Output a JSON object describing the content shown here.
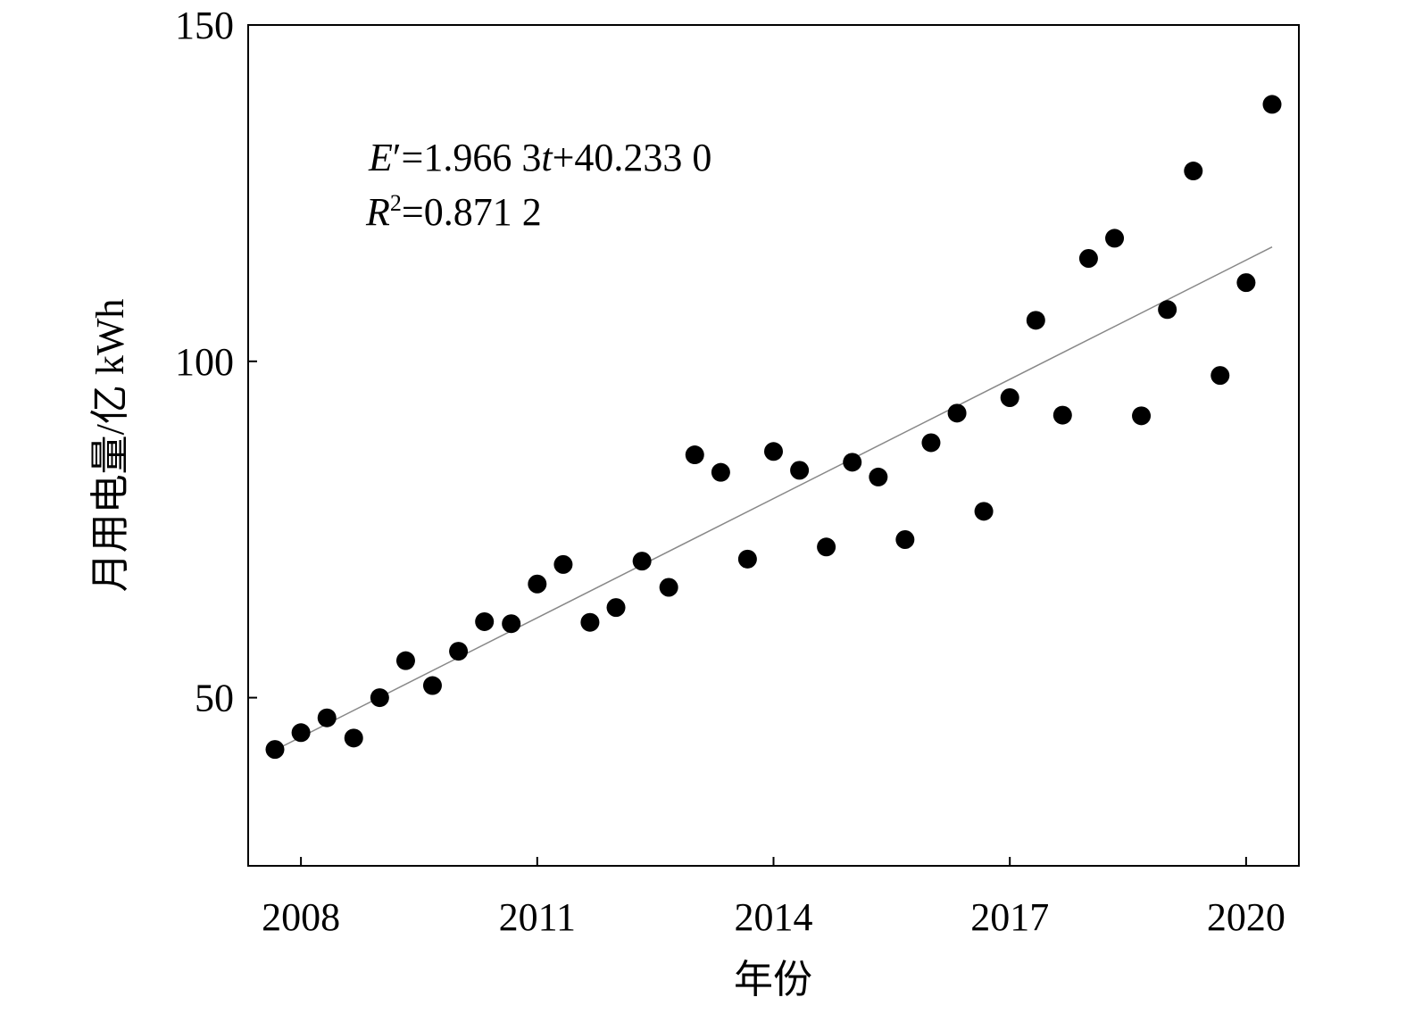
{
  "chart_data": {
    "type": "scatter",
    "xlabel": "年份",
    "ylabel": "月用电量/亿 kWh",
    "xlim": [
      2007.33,
      2020.67
    ],
    "ylim": [
      25,
      150
    ],
    "x_ticks": [
      2008,
      2011,
      2014,
      2017,
      2020
    ],
    "x_tick_labels": [
      "2008",
      "2011",
      "2014",
      "2017",
      "2020"
    ],
    "y_ticks": [
      50,
      100,
      150
    ],
    "y_tick_labels": [
      "50",
      "100",
      "150"
    ],
    "grid": false,
    "legend": "none",
    "colors": {
      "points": "#000000",
      "fit_line": "#888888",
      "axis": "#000000"
    },
    "fit_line": {
      "x": [
        2007.67,
        2020.33
      ],
      "y": [
        42.2,
        117.0
      ]
    },
    "annotations": {
      "equation_prefix": "E",
      "equation_prime": "′",
      "equation_mid": "=1.966 3",
      "equation_var": "t",
      "equation_suffix": "+40.233 0",
      "r2_prefix": "R",
      "r2_exp": "2",
      "r2_suffix": "=0.871 2"
    },
    "series": [
      {
        "x": [
          2007.67,
          2008.0,
          2008.33,
          2008.67,
          2009.0,
          2009.33,
          2009.67,
          2010.0,
          2010.33,
          2010.67,
          2011.0,
          2011.33,
          2011.67,
          2012.0,
          2012.33,
          2012.67,
          2013.0,
          2013.33,
          2013.67,
          2014.0,
          2014.33,
          2014.67,
          2015.0,
          2015.33,
          2015.67,
          2016.0,
          2016.33,
          2016.67,
          2017.0,
          2017.33,
          2017.67,
          2018.0,
          2018.33,
          2018.67,
          2019.0,
          2019.33,
          2019.67,
          2020.0,
          2020.33
        ],
        "y": [
          42.3,
          44.8,
          47.0,
          44.0,
          50.0,
          55.5,
          51.8,
          56.9,
          61.3,
          61.0,
          66.9,
          69.8,
          61.2,
          63.4,
          70.3,
          66.4,
          86.1,
          83.5,
          70.6,
          86.6,
          83.8,
          72.4,
          85.0,
          82.8,
          73.5,
          87.9,
          92.3,
          77.7,
          94.6,
          106.1,
          92.0,
          115.3,
          118.3,
          91.9,
          107.7,
          128.3,
          97.9,
          111.7,
          138.2
        ]
      }
    ]
  }
}
